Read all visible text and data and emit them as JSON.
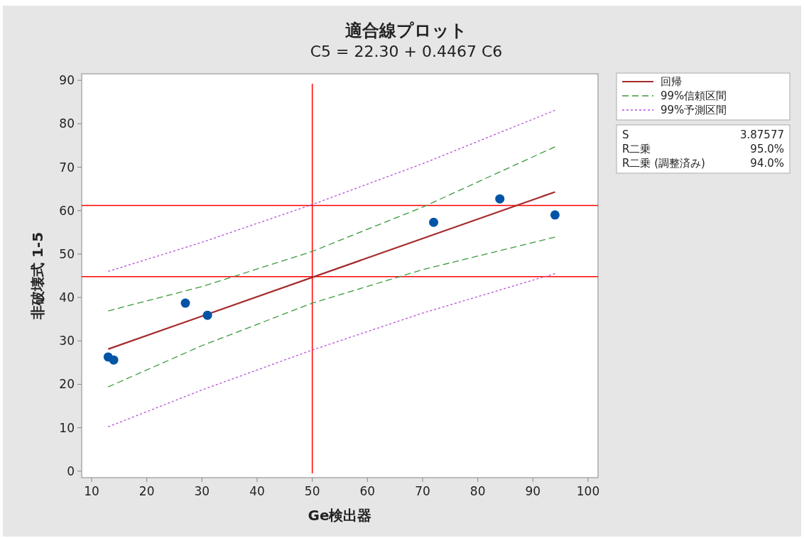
{
  "chart_data": {
    "type": "scatter",
    "title": "適合線プロット",
    "subtitle": "C5 = 22.30 + 0.4467 C6",
    "xlabel": "Ge検出器",
    "ylabel": "非破壊式 1-5",
    "xlim": [
      8.2,
      101.8
    ],
    "ylim": [
      -1.5,
      91.5
    ],
    "xticks": [
      10,
      20,
      30,
      40,
      50,
      60,
      70,
      80,
      90,
      100
    ],
    "yticks": [
      0,
      10,
      20,
      30,
      40,
      50,
      60,
      70,
      80,
      90
    ],
    "legend": "right",
    "series": [
      {
        "type": "line",
        "name": "回帰",
        "color": "#a52a2a",
        "line_style": "solid",
        "x": [
          13,
          94
        ],
        "values": [
          28.1,
          64.3
        ]
      },
      {
        "type": "line",
        "name": "99%信頼区間",
        "color": "#3c9a3c",
        "line_style": "dashed",
        "x": [
          13,
          30,
          50,
          70,
          94
        ],
        "values": [
          36.9,
          42.5,
          50.6,
          60.8,
          74.7
        ]
      },
      {
        "type": "line",
        "color": "#3c9a3c",
        "line_style": "dashed",
        "x": [
          13,
          30,
          50,
          70,
          94
        ],
        "values": [
          19.4,
          28.9,
          38.7,
          46.4,
          53.9
        ]
      },
      {
        "type": "line",
        "name": "99%予測区間",
        "color": "#b84fd6",
        "line_style": "dotted",
        "x": [
          13,
          30,
          50,
          70,
          94
        ],
        "values": [
          46.0,
          52.7,
          61.4,
          70.8,
          83.1
        ]
      },
      {
        "type": "line",
        "color": "#b84fd6",
        "line_style": "dotted",
        "x": [
          13,
          30,
          50,
          70,
          94
        ],
        "values": [
          10.2,
          18.7,
          27.9,
          36.4,
          45.5
        ]
      },
      {
        "type": "scatter",
        "marker": "circle",
        "color": "#0054a6",
        "x": [
          13,
          14,
          27,
          31,
          72,
          84,
          94
        ],
        "values": [
          26.3,
          25.6,
          38.7,
          35.9,
          57.3,
          62.7,
          59.0
        ]
      }
    ],
    "ref_lines": [
      {
        "axis": "x",
        "value": 50,
        "color": "#ff0000"
      },
      {
        "axis": "y",
        "value": 61.2,
        "color": "#ff0000"
      },
      {
        "axis": "y",
        "value": 44.8,
        "color": "#ff0000"
      }
    ],
    "annotations": [
      "S",
      "3.87577",
      "R二乗",
      "95.0%",
      "R二乗 (調整済み)",
      "94.0%"
    ]
  }
}
